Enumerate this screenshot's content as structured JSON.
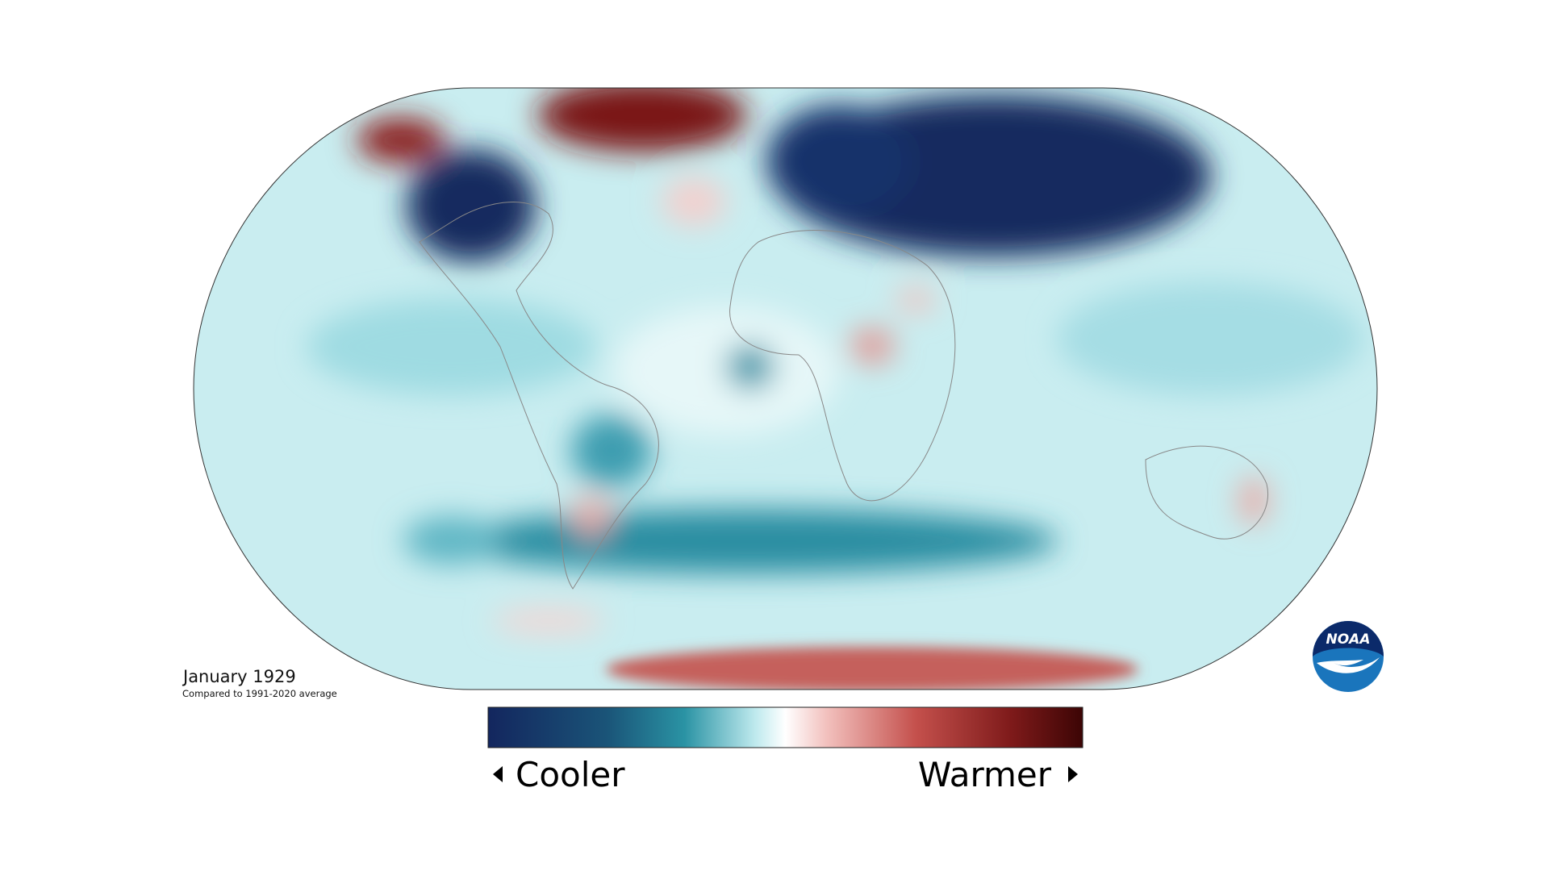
{
  "map": {
    "date_label": "January 1929",
    "baseline_note": "Compared to 1991-2020 average"
  },
  "legend": {
    "low_label": "Cooler",
    "high_label": "Warmer"
  },
  "logo": {
    "text": "NOAA"
  }
}
